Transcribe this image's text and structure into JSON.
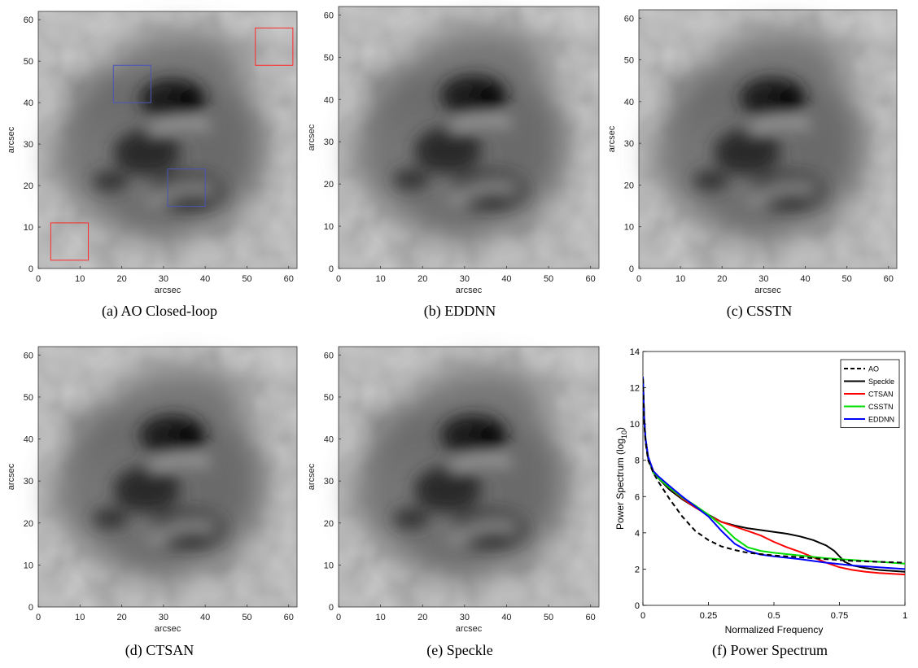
{
  "colors": {
    "ao": "#000000",
    "speckle": "#000000",
    "ctsan": "#ff0000",
    "csstn": "#00dd00",
    "eddnn": "#0000ff",
    "roi_red": "#ff2a2a",
    "roi_blue": "#4a55b8"
  },
  "panels": [
    {
      "caption": "(a)  AO Closed-loop",
      "xlabel": "arcsec",
      "ylabel": "arcsec"
    },
    {
      "caption": "(b)  EDDNN",
      "xlabel": "arcsec",
      "ylabel": "arcsec"
    },
    {
      "caption": "(c)  CSSTN",
      "xlabel": "arcsec",
      "ylabel": "arcsec"
    },
    {
      "caption": "(d)  CTSAN",
      "xlabel": "arcsec",
      "ylabel": "arcsec"
    },
    {
      "caption": "(e)  Speckle",
      "xlabel": "arcsec",
      "ylabel": "arcsec"
    }
  ],
  "image_ticks": {
    "x": [
      "0",
      "10",
      "20",
      "30",
      "40",
      "50",
      "60"
    ],
    "y": [
      "0",
      "10",
      "20",
      "30",
      "40",
      "50",
      "60"
    ]
  },
  "roi_boxes_arcsec": [
    {
      "color": "red",
      "x0": 52,
      "x1": 61,
      "y0": 49,
      "y1": 58
    },
    {
      "color": "red",
      "x0": 3,
      "x1": 12,
      "y0": 2,
      "y1": 11
    },
    {
      "color": "blue",
      "x0": 18,
      "x1": 27,
      "y0": 40,
      "y1": 49
    },
    {
      "color": "blue",
      "x0": 31,
      "x1": 40,
      "y0": 15,
      "y1": 24
    }
  ],
  "chart_data": {
    "type": "line",
    "title": "",
    "caption": "(f)  Power Spectrum",
    "xlabel": "Normalized Frequency",
    "ylabel": "Power Spectrum (log10)",
    "ylabel_main": "Power Spectrum (log",
    "ylabel_sub": "10",
    "ylabel_end": ")",
    "xlim": [
      0,
      1
    ],
    "ylim": [
      0,
      14
    ],
    "xticks": [
      0,
      0.25,
      0.5,
      0.75,
      1
    ],
    "xtick_labels": [
      "0",
      "0.25",
      "0.5",
      "0.75",
      "1"
    ],
    "yticks": [
      0,
      2,
      4,
      6,
      8,
      10,
      12,
      14
    ],
    "ytick_labels": [
      "0",
      "2",
      "4",
      "6",
      "8",
      "10",
      "12",
      "14"
    ],
    "grid": false,
    "legend_position": "top-right",
    "legend": [
      "AO",
      "Speckle",
      "CTSAN",
      "CSSTN",
      "EDDNN"
    ],
    "series": [
      {
        "name": "AO",
        "style": "dashed",
        "x": [
          0,
          0.005,
          0.01,
          0.02,
          0.04,
          0.06,
          0.1,
          0.15,
          0.2,
          0.25,
          0.3,
          0.35,
          0.4,
          0.5,
          0.6,
          0.7,
          0.8,
          0.9,
          1.0
        ],
        "y": [
          12.5,
          10.0,
          9.0,
          8.0,
          7.3,
          6.8,
          5.9,
          4.9,
          4.1,
          3.6,
          3.25,
          3.05,
          2.9,
          2.75,
          2.65,
          2.55,
          2.45,
          2.4,
          2.35
        ]
      },
      {
        "name": "Speckle",
        "style": "solid",
        "x": [
          0,
          0.005,
          0.01,
          0.02,
          0.04,
          0.06,
          0.1,
          0.15,
          0.2,
          0.25,
          0.3,
          0.35,
          0.4,
          0.45,
          0.5,
          0.55,
          0.6,
          0.65,
          0.7,
          0.73,
          0.75,
          0.77,
          0.8,
          0.85,
          0.9,
          1.0
        ],
        "y": [
          12.5,
          10.2,
          9.1,
          8.1,
          7.3,
          7.0,
          6.4,
          5.85,
          5.4,
          5.0,
          4.6,
          4.4,
          4.25,
          4.15,
          4.05,
          3.95,
          3.8,
          3.6,
          3.3,
          3.0,
          2.7,
          2.4,
          2.2,
          2.05,
          1.95,
          1.85
        ]
      },
      {
        "name": "CTSAN",
        "style": "solid",
        "x": [
          0,
          0.005,
          0.01,
          0.02,
          0.04,
          0.06,
          0.1,
          0.15,
          0.2,
          0.25,
          0.3,
          0.35,
          0.4,
          0.45,
          0.5,
          0.55,
          0.6,
          0.65,
          0.7,
          0.75,
          0.8,
          0.85,
          0.9,
          1.0
        ],
        "y": [
          12.6,
          10.3,
          9.2,
          8.2,
          7.3,
          7.0,
          6.5,
          5.9,
          5.4,
          4.95,
          4.6,
          4.35,
          4.1,
          3.85,
          3.5,
          3.2,
          2.95,
          2.65,
          2.35,
          2.1,
          1.95,
          1.85,
          1.78,
          1.7
        ]
      },
      {
        "name": "CSSTN",
        "style": "solid",
        "x": [
          0,
          0.005,
          0.01,
          0.02,
          0.04,
          0.06,
          0.1,
          0.15,
          0.2,
          0.25,
          0.3,
          0.35,
          0.4,
          0.45,
          0.5,
          0.6,
          0.7,
          0.8,
          0.9,
          1.0
        ],
        "y": [
          12.6,
          10.3,
          9.2,
          8.2,
          7.3,
          7.0,
          6.5,
          5.95,
          5.5,
          5.0,
          4.4,
          3.7,
          3.2,
          3.0,
          2.9,
          2.75,
          2.6,
          2.5,
          2.4,
          2.3
        ]
      },
      {
        "name": "EDDNN",
        "style": "solid",
        "x": [
          0,
          0.005,
          0.01,
          0.02,
          0.04,
          0.06,
          0.1,
          0.15,
          0.2,
          0.25,
          0.3,
          0.35,
          0.4,
          0.45,
          0.5,
          0.6,
          0.7,
          0.8,
          0.9,
          1.0
        ],
        "y": [
          12.6,
          10.3,
          9.2,
          8.2,
          7.4,
          7.1,
          6.6,
          6.0,
          5.45,
          4.9,
          4.1,
          3.4,
          3.0,
          2.8,
          2.7,
          2.55,
          2.35,
          2.2,
          2.1,
          2.0
        ]
      }
    ]
  }
}
